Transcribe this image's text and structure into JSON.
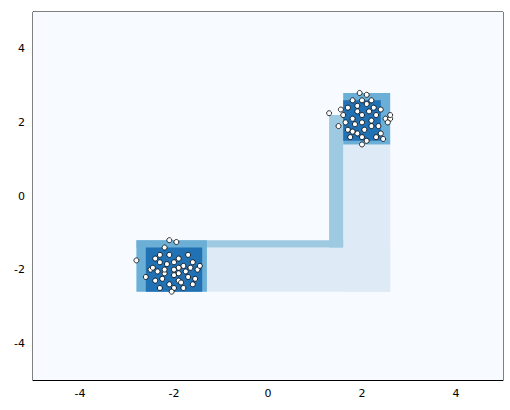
{
  "chart_data": {
    "type": "scatter",
    "xlim": [
      -5,
      5
    ],
    "ylim": [
      -5,
      5
    ],
    "xticks": [
      -4,
      -2,
      0,
      2,
      4
    ],
    "yticks": [
      -4,
      -2,
      0,
      2,
      4
    ],
    "grid": false,
    "color": "#ffffff",
    "marker": "circle",
    "regions": [
      {
        "x": [
          -5,
          5
        ],
        "y": [
          -5,
          5
        ],
        "color": "#f7fbff"
      },
      {
        "x": [
          -1.4,
          2.6
        ],
        "y": [
          -2.6,
          -1.4
        ],
        "color": "#deebf7"
      },
      {
        "x": [
          1.6,
          2.6
        ],
        "y": [
          -2.6,
          1.4
        ],
        "color": "#deebf7"
      },
      {
        "x": [
          -2.8,
          1.6
        ],
        "y": [
          -1.4,
          -1.2
        ],
        "color": "#9ecae1"
      },
      {
        "x": [
          1.3,
          1.6
        ],
        "y": [
          -1.4,
          2.2
        ],
        "color": "#9ecae1"
      },
      {
        "x": [
          -2.8,
          -1.3
        ],
        "y": [
          -2.6,
          -1.2
        ],
        "color": "#6baed6"
      },
      {
        "x": [
          -2.6,
          -1.4
        ],
        "y": [
          -2.6,
          -1.4
        ],
        "color": "#2171b5"
      },
      {
        "x": [
          1.6,
          2.6
        ],
        "y": [
          1.4,
          2.8
        ],
        "color": "#6baed6"
      },
      {
        "x": [
          1.6,
          2.4
        ],
        "y": [
          1.5,
          2.6
        ],
        "color": "#2171b5"
      }
    ],
    "x": [
      -2.0,
      -1.8,
      -2.2,
      -1.9,
      -2.3,
      -1.7,
      -2.1,
      -2.4,
      -1.6,
      -2.0,
      -2.5,
      -1.5,
      -2.2,
      -1.9,
      -2.1,
      -1.8,
      -2.6,
      -2.3,
      -1.6,
      -2.0,
      -2.2,
      -1.9,
      -1.7,
      -2.4,
      -2.1,
      -1.95,
      -2.8,
      -1.45,
      -2.05,
      -2.35,
      -1.75,
      -2.15,
      -1.85,
      -2.45,
      -1.55,
      -2.25,
      -2.0,
      -1.65,
      -2.3,
      -1.9,
      2.0,
      1.8,
      2.2,
      1.9,
      2.3,
      1.7,
      2.1,
      2.4,
      1.6,
      2.0,
      2.5,
      1.5,
      2.2,
      1.9,
      2.1,
      1.8,
      2.6,
      2.3,
      1.7,
      2.0,
      2.2,
      1.85,
      1.75,
      2.4,
      1.95,
      2.1,
      1.3,
      2.55,
      2.0,
      2.35,
      1.65,
      2.15,
      1.9,
      2.45,
      1.55,
      2.05,
      2.25,
      1.8,
      2.6,
      2.0
    ],
    "values": [
      -2.0,
      -1.9,
      -2.1,
      -2.3,
      -1.8,
      -2.2,
      -1.6,
      -2.3,
      -1.8,
      -2.5,
      -2.0,
      -2.0,
      -1.4,
      -1.7,
      -2.4,
      -2.5,
      -2.2,
      -2.5,
      -2.4,
      -1.8,
      -2.0,
      -2.1,
      -1.6,
      -1.7,
      -1.2,
      -1.25,
      -1.75,
      -1.9,
      -2.6,
      -2.05,
      -2.05,
      -1.85,
      -2.35,
      -1.95,
      -2.25,
      -2.25,
      -2.15,
      -1.95,
      -1.6,
      -1.95,
      2.0,
      2.1,
      1.9,
      2.3,
      2.2,
      1.8,
      2.5,
      1.7,
      2.2,
      1.6,
      2.1,
      1.9,
      2.6,
      1.7,
      1.5,
      2.6,
      2.1,
      1.6,
      2.4,
      2.2,
      2.05,
      1.95,
      1.6,
      2.35,
      2.8,
      2.75,
      2.25,
      2.0,
      1.4,
      1.9,
      2.0,
      2.3,
      2.45,
      1.55,
      2.35,
      1.8,
      2.4,
      1.75,
      2.2,
      2.6
    ]
  }
}
